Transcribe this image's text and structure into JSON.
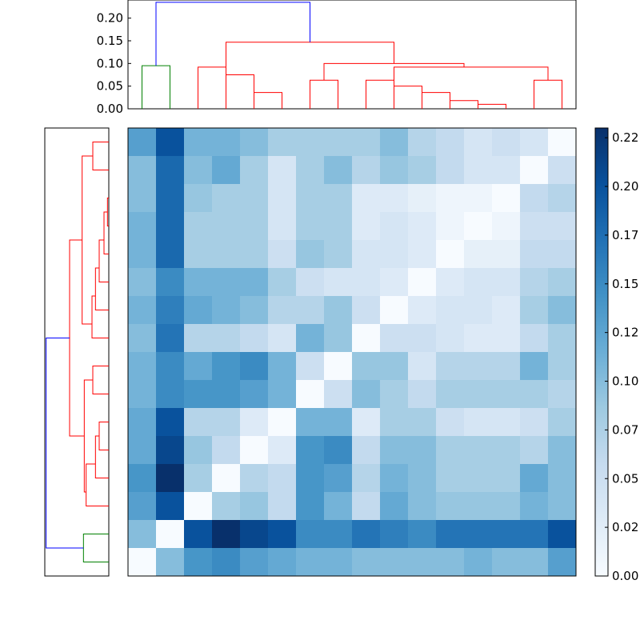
{
  "chart_data": {
    "type": "heatmap",
    "title": "",
    "xlabel": "",
    "ylabel": "",
    "colormap": {
      "name": "Blues",
      "low": "#f7fbff",
      "high": "#08306b",
      "range": [
        0,
        0.23
      ]
    },
    "colorbar": {
      "ticks": [
        0.0,
        0.025,
        0.05,
        0.075,
        0.1,
        0.125,
        0.15,
        0.175,
        0.2,
        0.225
      ],
      "tick_labels": [
        "0.00",
        "0.02",
        "0.05",
        "0.07",
        "0.10",
        "0.12",
        "0.15",
        "0.17",
        "0.20",
        "0.22"
      ]
    },
    "top_dendrogram": {
      "yaxis": {
        "ticks": [
          0.0,
          0.05,
          0.1,
          0.15,
          0.2
        ],
        "tick_labels": [
          "0.00",
          "0.05",
          "0.10",
          "0.15",
          "0.20"
        ],
        "range": [
          0,
          0.24
        ]
      },
      "links": [
        {
          "x": [
            0.5,
            1.5
          ],
          "h": 0.095,
          "color": "#008000"
        },
        {
          "x": [
            3.5,
            4.5
          ],
          "h": 0.036,
          "color": "#ff0000"
        },
        {
          "x": [
            3.0,
            4.0
          ],
          "h": 0.075,
          "color": "#ff0000"
        },
        {
          "x": [
            2.5,
            3.5
          ],
          "h": 0.092,
          "color": "#ff0000"
        },
        {
          "x": [
            6.5,
            7.5
          ],
          "h": 0.018,
          "color": "#ff0000"
        },
        {
          "x": [
            6.0,
            7.0
          ],
          "h": 0.036,
          "color": "#ff0000"
        },
        {
          "x": [
            5.5,
            6.5
          ],
          "h": 0.05,
          "color": "#ff0000"
        },
        {
          "x": [
            10.5,
            11.5
          ],
          "h": 0.063,
          "color": "#ff0000"
        },
        {
          "x": [
            14.5,
            15.5
          ],
          "h": 0.063,
          "color": "#ff0000"
        },
        {
          "x": [
            8.5,
            9.5
          ],
          "h": 0.01,
          "color": "#ff0000"
        },
        {
          "x": [
            8.0,
            9.0
          ],
          "h": 0.032,
          "color": "#ff0000"
        },
        {
          "x": [
            10.0,
            11.0
          ],
          "h": 0.018,
          "color": "#ff0000"
        },
        {
          "x": [
            12.5,
            13.5
          ],
          "h": 0.014,
          "color": "#ff0000"
        },
        {
          "x": [
            4.5,
            5.5
          ],
          "h": 0.005,
          "color": "#ff0000"
        }
      ],
      "upper_links": [
        {
          "left": [
            2.5,
            0.092
          ],
          "right": [
            4.5,
            0.1
          ],
          "h": 0.147,
          "color": "#ff0000"
        }
      ],
      "root": {
        "color": "#0000ff",
        "h": 0.235
      }
    },
    "left_dendrogram": {
      "root": {
        "color": "#0000ff"
      },
      "small_cluster": {
        "color": "#008000",
        "rows": [
          14,
          15
        ]
      },
      "branch_color": "#ff0000"
    },
    "rows": 16,
    "cols": 16,
    "matrix": [
      [
        0.13,
        0.2,
        0.11,
        0.11,
        0.1,
        0.08,
        0.08,
        0.08,
        0.08,
        0.1,
        0.07,
        0.06,
        0.04,
        0.05,
        0.04,
        0.0
      ],
      [
        0.1,
        0.18,
        0.1,
        0.12,
        0.08,
        0.04,
        0.08,
        0.1,
        0.07,
        0.09,
        0.08,
        0.06,
        0.04,
        0.04,
        0.0,
        0.05
      ],
      [
        0.1,
        0.18,
        0.09,
        0.08,
        0.08,
        0.04,
        0.08,
        0.08,
        0.03,
        0.03,
        0.02,
        0.01,
        0.01,
        0.0,
        0.06,
        0.07
      ],
      [
        0.11,
        0.18,
        0.08,
        0.08,
        0.08,
        0.04,
        0.08,
        0.08,
        0.03,
        0.04,
        0.03,
        0.01,
        0.0,
        0.01,
        0.05,
        0.05
      ],
      [
        0.11,
        0.18,
        0.08,
        0.08,
        0.08,
        0.05,
        0.09,
        0.08,
        0.04,
        0.04,
        0.03,
        0.0,
        0.02,
        0.02,
        0.06,
        0.06
      ],
      [
        0.1,
        0.15,
        0.11,
        0.11,
        0.11,
        0.08,
        0.05,
        0.04,
        0.04,
        0.03,
        0.0,
        0.03,
        0.04,
        0.04,
        0.07,
        0.08
      ],
      [
        0.11,
        0.16,
        0.12,
        0.11,
        0.1,
        0.07,
        0.07,
        0.09,
        0.05,
        0.0,
        0.03,
        0.04,
        0.04,
        0.03,
        0.08,
        0.1
      ],
      [
        0.1,
        0.17,
        0.07,
        0.07,
        0.06,
        0.04,
        0.11,
        0.09,
        0.0,
        0.05,
        0.05,
        0.04,
        0.03,
        0.03,
        0.06,
        0.08
      ],
      [
        0.11,
        0.15,
        0.12,
        0.14,
        0.15,
        0.11,
        0.05,
        0.0,
        0.09,
        0.09,
        0.04,
        0.07,
        0.07,
        0.07,
        0.11,
        0.08
      ],
      [
        0.11,
        0.15,
        0.14,
        0.14,
        0.13,
        0.11,
        0.0,
        0.05,
        0.1,
        0.08,
        0.06,
        0.08,
        0.08,
        0.08,
        0.08,
        0.07
      ],
      [
        0.12,
        0.2,
        0.07,
        0.07,
        0.03,
        0.0,
        0.11,
        0.11,
        0.03,
        0.08,
        0.08,
        0.05,
        0.04,
        0.04,
        0.05,
        0.08
      ],
      [
        0.12,
        0.21,
        0.09,
        0.06,
        0.0,
        0.03,
        0.14,
        0.15,
        0.06,
        0.1,
        0.1,
        0.08,
        0.08,
        0.08,
        0.07,
        0.1
      ],
      [
        0.14,
        0.23,
        0.08,
        0.0,
        0.07,
        0.06,
        0.14,
        0.13,
        0.07,
        0.11,
        0.1,
        0.08,
        0.08,
        0.08,
        0.12,
        0.1
      ],
      [
        0.13,
        0.2,
        0.0,
        0.08,
        0.09,
        0.06,
        0.14,
        0.11,
        0.06,
        0.12,
        0.1,
        0.09,
        0.09,
        0.09,
        0.11,
        0.1
      ],
      [
        0.1,
        0.0,
        0.2,
        0.23,
        0.21,
        0.2,
        0.15,
        0.15,
        0.17,
        0.16,
        0.15,
        0.17,
        0.17,
        0.17,
        0.17,
        0.2
      ],
      [
        0.0,
        0.1,
        0.14,
        0.15,
        0.13,
        0.12,
        0.11,
        0.11,
        0.1,
        0.1,
        0.1,
        0.1,
        0.11,
        0.1,
        0.1,
        0.13
      ]
    ]
  }
}
